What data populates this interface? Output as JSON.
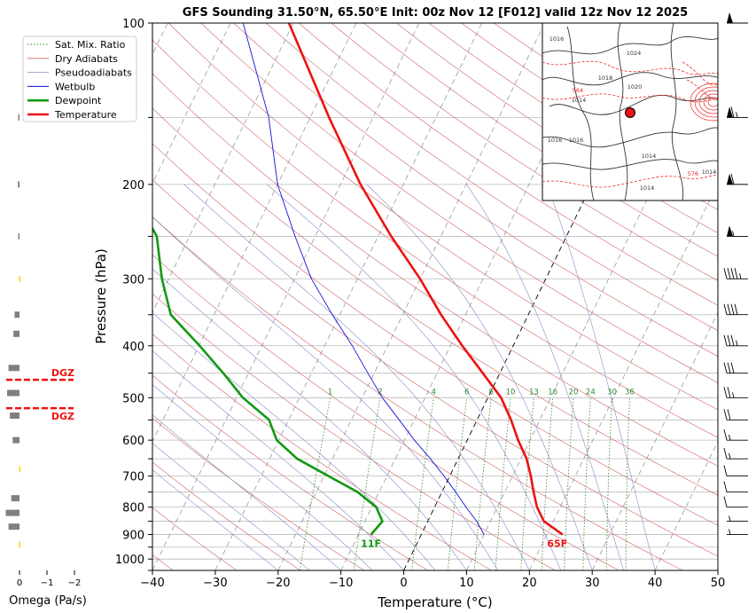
{
  "chart_data": {
    "type": "line",
    "title": "GFS Sounding 31.50°N, 65.50°E Init: 00z Nov 12 [F012] valid 12z Nov 12 2025",
    "xlabel": "Temperature (°C)",
    "ylabel": "Pressure (hPa)",
    "xlim": [
      -40,
      50
    ],
    "ylim": [
      1050,
      100
    ],
    "y_scale": "log",
    "x_ticks": [
      "−40",
      "−30",
      "−20",
      "−10",
      "0",
      "10",
      "20",
      "30",
      "40",
      "50"
    ],
    "y_ticks": [
      "100",
      "200",
      "300",
      "400",
      "500",
      "600",
      "700",
      "800",
      "900",
      "1000"
    ],
    "legend": [
      "Sat. Mix. Ratio",
      "Dry Adiabats",
      "Pseudoadiabats",
      "Wetbulb",
      "Dewpoint",
      "Temperature"
    ],
    "legend_position": "top-left",
    "grid": true,
    "colors": {
      "temperature": "#ee1111",
      "dewpoint": "#119911",
      "wetbulb": "#1111dd",
      "dry_adiabat": "#cc6666",
      "pseudoadiabat": "#8888cc",
      "mixing_ratio": "#2e8b2e",
      "dgz": "#ee1111",
      "omega_bar": "#808080",
      "omega_up": "#ffd700"
    },
    "series": [
      {
        "name": "Temperature",
        "points": [
          {
            "p": 900,
            "t": 22.5
          },
          {
            "p": 850,
            "t": 18.5
          },
          {
            "p": 800,
            "t": 16.3
          },
          {
            "p": 750,
            "t": 14.6
          },
          {
            "p": 700,
            "t": 12.9
          },
          {
            "p": 650,
            "t": 10.9
          },
          {
            "p": 600,
            "t": 8.1
          },
          {
            "p": 550,
            "t": 5.4
          },
          {
            "p": 500,
            "t": 2.1
          },
          {
            "p": 450,
            "t": -2.7
          },
          {
            "p": 400,
            "t": -8.1
          },
          {
            "p": 350,
            "t": -13.9
          },
          {
            "p": 300,
            "t": -20.0
          },
          {
            "p": 250,
            "t": -27.9
          },
          {
            "p": 200,
            "t": -36.8
          },
          {
            "p": 150,
            "t": -47.0
          },
          {
            "p": 100,
            "t": -60.7
          }
        ]
      },
      {
        "name": "Dewpoint",
        "points": [
          {
            "p": 900,
            "t": -8.0
          },
          {
            "p": 850,
            "t": -7.2
          },
          {
            "p": 800,
            "t": -9.3
          },
          {
            "p": 750,
            "t": -13.4
          },
          {
            "p": 700,
            "t": -19.3
          },
          {
            "p": 650,
            "t": -25.6
          },
          {
            "p": 600,
            "t": -30.3
          },
          {
            "p": 550,
            "t": -33.1
          },
          {
            "p": 500,
            "t": -39.0
          },
          {
            "p": 450,
            "t": -44.0
          },
          {
            "p": 400,
            "t": -49.9
          },
          {
            "p": 350,
            "t": -56.9
          },
          {
            "p": 300,
            "t": -61.1
          },
          {
            "p": 250,
            "t": -65.2
          },
          {
            "p": 200,
            "t": -73.8
          },
          {
            "p": 150,
            "t": -84.2
          },
          {
            "p": 100,
            "t": -87.0
          }
        ]
      },
      {
        "name": "Wetbulb",
        "points": [
          {
            "p": 900,
            "t": 10.0
          },
          {
            "p": 850,
            "t": 7.8
          },
          {
            "p": 800,
            "t": 5.0
          },
          {
            "p": 750,
            "t": 2.2
          },
          {
            "p": 700,
            "t": -0.9
          },
          {
            "p": 650,
            "t": -4.4
          },
          {
            "p": 600,
            "t": -8.4
          },
          {
            "p": 550,
            "t": -12.4
          },
          {
            "p": 500,
            "t": -16.8
          },
          {
            "p": 450,
            "t": -21.0
          },
          {
            "p": 400,
            "t": -25.6
          },
          {
            "p": 350,
            "t": -31.2
          },
          {
            "p": 300,
            "t": -37.3
          },
          {
            "p": 250,
            "t": -43.2
          },
          {
            "p": 200,
            "t": -50.0
          },
          {
            "p": 150,
            "t": -56.6
          },
          {
            "p": 100,
            "t": -68.0
          }
        ]
      }
    ],
    "mixing_ratio_labels": [
      "1",
      "2",
      "4",
      "6",
      "8",
      "10",
      "13",
      "16",
      "20",
      "24",
      "30",
      "36"
    ],
    "mixing_ratio_values": [
      1,
      2,
      4,
      6,
      8,
      10,
      13,
      16,
      20,
      24,
      30,
      36
    ],
    "surface_labels": {
      "temperature": "65F",
      "dewpoint": "11F"
    },
    "omega": {
      "xlabel": "Omega (Pa/s)",
      "x_ticks": [
        "0",
        "−1",
        "−2"
      ],
      "values": [
        {
          "p": 940,
          "w": -0.05
        },
        {
          "p": 870,
          "w": 0.4
        },
        {
          "p": 820,
          "w": 0.5
        },
        {
          "p": 770,
          "w": 0.3
        },
        {
          "p": 680,
          "w": -0.05
        },
        {
          "p": 600,
          "w": 0.25
        },
        {
          "p": 540,
          "w": 0.35
        },
        {
          "p": 490,
          "w": 0.45
        },
        {
          "p": 440,
          "w": 0.4
        },
        {
          "p": 380,
          "w": 0.22
        },
        {
          "p": 350,
          "w": 0.18
        },
        {
          "p": 300,
          "w": -0.05
        },
        {
          "p": 250,
          "w": 0.03
        },
        {
          "p": 200,
          "w": 0.06
        },
        {
          "p": 150,
          "w": 0.03
        }
      ],
      "dgz": {
        "label": "DGZ",
        "bounds_hpa": [
          463,
          523
        ]
      }
    },
    "winds": [
      {
        "p": 100,
        "dir": 270,
        "kt": 50
      },
      {
        "p": 150,
        "dir": 265,
        "kt": 65
      },
      {
        "p": 200,
        "dir": 265,
        "kt": 60
      },
      {
        "p": 250,
        "dir": 260,
        "kt": 55
      },
      {
        "p": 300,
        "dir": 255,
        "kt": 45
      },
      {
        "p": 350,
        "dir": 250,
        "kt": 40
      },
      {
        "p": 400,
        "dir": 245,
        "kt": 35
      },
      {
        "p": 450,
        "dir": 240,
        "kt": 30
      },
      {
        "p": 500,
        "dir": 235,
        "kt": 25
      },
      {
        "p": 550,
        "dir": 230,
        "kt": 20
      },
      {
        "p": 600,
        "dir": 225,
        "kt": 15
      },
      {
        "p": 650,
        "dir": 220,
        "kt": 15
      },
      {
        "p": 700,
        "dir": 210,
        "kt": 10
      },
      {
        "p": 750,
        "dir": 200,
        "kt": 10
      },
      {
        "p": 800,
        "dir": 260,
        "kt": 10
      },
      {
        "p": 850,
        "dir": 270,
        "kt": 5
      },
      {
        "p": 900,
        "dir": 270,
        "kt": 5
      }
    ],
    "inset_map": {
      "marker": "location",
      "contour_labels": [
        "1016",
        "1024",
        "564",
        "1018",
        "1014",
        "1016",
        "576",
        "1014",
        "1020",
        "1014",
        "1016",
        "1014"
      ]
    }
  }
}
